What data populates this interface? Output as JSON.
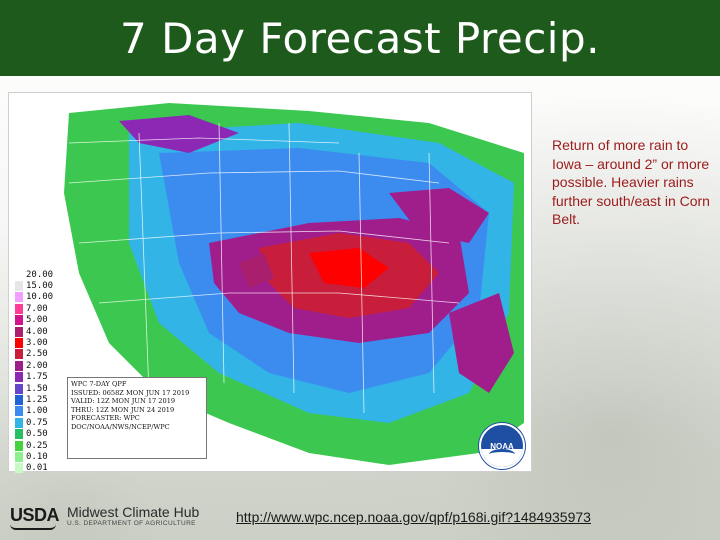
{
  "slide": {
    "title": "7 Day Forecast Precip.",
    "side_text": "Return of more rain to Iowa – around 2” or more possible. Heavier rains further south/east in Corn Belt.",
    "url": "http://www.wpc.ncep.noaa.gov/qpf/p168i.gif?1484935973"
  },
  "map": {
    "legend": [
      {
        "label": "20.00",
        "color": "#ffffff"
      },
      {
        "label": "15.00",
        "color": "#e6e6e6"
      },
      {
        "label": "10.00",
        "color": "#f2a0ff"
      },
      {
        "label": "7.00",
        "color": "#ff3c96"
      },
      {
        "label": "5.00",
        "color": "#d2148c"
      },
      {
        "label": "4.00",
        "color": "#aa1e6e"
      },
      {
        "label": "3.00",
        "color": "#ff0000"
      },
      {
        "label": "2.50",
        "color": "#c81e3c"
      },
      {
        "label": "2.00",
        "color": "#a01e8c"
      },
      {
        "label": "1.75",
        "color": "#8c28b4"
      },
      {
        "label": "1.50",
        "color": "#6446c8"
      },
      {
        "label": "1.25",
        "color": "#1e64d2"
      },
      {
        "label": "1.00",
        "color": "#3c8cf0"
      },
      {
        "label": "0.75",
        "color": "#32b4e6"
      },
      {
        "label": "0.50",
        "color": "#28be64"
      },
      {
        "label": "0.25",
        "color": "#46d23c"
      },
      {
        "label": "0.10",
        "color": "#8cf08c"
      },
      {
        "label": "0.01",
        "color": "#c8fac8"
      }
    ],
    "info_lines": [
      "WPC 7-DAY QPF",
      "ISSUED: 0658Z MON JUN 17 2019",
      "VALID: 12Z MON JUN 17 2019",
      "THRU: 12Z MON JUN 24 2019",
      "FORECASTER: WPC",
      "DOC/NOAA/NWS/NCEP/WPC"
    ],
    "noaa_label": "NOAA"
  },
  "footer": {
    "usda": "USDA",
    "hub_title": "Midwest Climate Hub",
    "hub_sub": "U.S. DEPARTMENT OF AGRICULTURE"
  }
}
